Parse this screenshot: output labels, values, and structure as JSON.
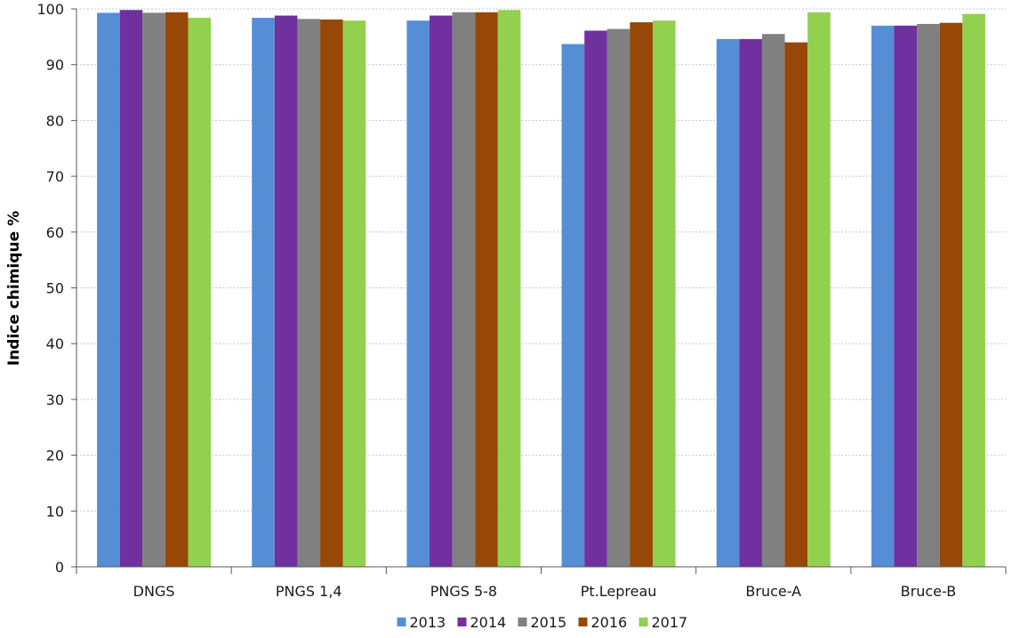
{
  "chart_data": {
    "type": "bar",
    "title": "",
    "xlabel": "",
    "ylabel": "Indice chimique  %",
    "ylim": [
      0,
      100
    ],
    "yticks": [
      0,
      10,
      20,
      30,
      40,
      50,
      60,
      70,
      80,
      90,
      100
    ],
    "grid": "horizontal-dotted",
    "legend": "bottom",
    "categories": [
      "DNGS",
      "PNGS 1,4",
      "PNGS 5-8",
      "Pt.Lepreau",
      "Bruce-A",
      "Bruce-B"
    ],
    "series": [
      {
        "name": "2013",
        "color": "#558ED5",
        "values": [
          99.3,
          98.4,
          97.9,
          93.7,
          94.6,
          97.0
        ]
      },
      {
        "name": "2014",
        "color": "#7030A0",
        "values": [
          99.8,
          98.8,
          98.8,
          96.1,
          94.6,
          97.0
        ]
      },
      {
        "name": "2015",
        "color": "#808080",
        "values": [
          99.3,
          98.2,
          99.4,
          96.4,
          95.5,
          97.3
        ]
      },
      {
        "name": "2016",
        "color": "#974806",
        "values": [
          99.4,
          98.1,
          99.4,
          97.6,
          94.0,
          97.5
        ]
      },
      {
        "name": "2017",
        "color": "#92D050",
        "values": [
          98.4,
          97.9,
          99.8,
          97.9,
          99.4,
          99.1
        ]
      }
    ]
  }
}
